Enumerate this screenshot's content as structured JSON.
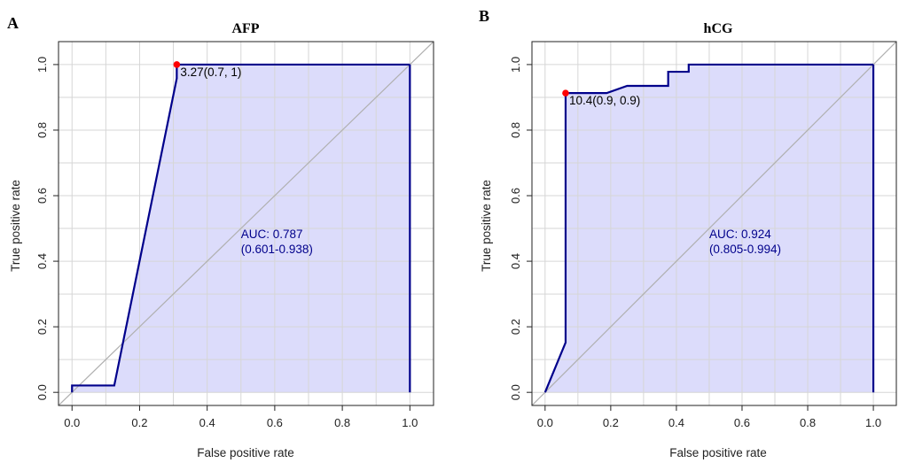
{
  "colors": {
    "fill": "#dcdcfb",
    "curve": "#00008b",
    "grid": "#d6d6d6",
    "diagonal": "#b0b0b0",
    "point": "#ff0000",
    "auc_text": "#00008b",
    "thr_text": "#000000"
  },
  "chart_data": [
    {
      "type": "line",
      "letter": "A",
      "title": "AFP",
      "xlabel": "False positive rate",
      "ylabel": "True positive rate",
      "xlim": [
        -0.04,
        1.07
      ],
      "ylim": [
        -0.04,
        1.07
      ],
      "grid": true,
      "xticks": [
        "0.0",
        "0.2",
        "0.4",
        "0.6",
        "0.8",
        "1.0"
      ],
      "yticks": [
        "0.0",
        "0.2",
        "0.4",
        "0.6",
        "0.8",
        "1.0"
      ],
      "series": [
        {
          "x": [
            0,
            0,
            0.125,
            0.31,
            0.31,
            1.0,
            1.0
          ],
          "y": [
            0,
            0.021,
            0.021,
            0.958,
            1.0,
            1.0,
            0
          ]
        }
      ],
      "threshold": {
        "x": 0.31,
        "y": 1.0,
        "label": "3.27(0.7, 1)"
      },
      "auc_text": "AUC: 0.787",
      "ci_text": "(0.601-0.938)",
      "auc_pos": [
        0.5,
        0.47
      ]
    },
    {
      "type": "line",
      "letter": "B",
      "title": "hCG",
      "xlabel": "False positive rate",
      "ylabel": "True positive rate",
      "xlim": [
        -0.04,
        1.07
      ],
      "ylim": [
        -0.04,
        1.07
      ],
      "grid": true,
      "xticks": [
        "0.0",
        "0.2",
        "0.4",
        "0.6",
        "0.8",
        "1.0"
      ],
      "yticks": [
        "0.0",
        "0.2",
        "0.4",
        "0.6",
        "0.8",
        "1.0"
      ],
      "series": [
        {
          "x": [
            0,
            0.0625,
            0.0625,
            0.1875,
            0.25,
            0.375,
            0.375,
            0.4375,
            0.4375,
            1.0,
            1.0
          ],
          "y": [
            0,
            0.152,
            0.913,
            0.913,
            0.935,
            0.935,
            0.978,
            0.978,
            1.0,
            1.0,
            0
          ]
        }
      ],
      "threshold": {
        "x": 0.0625,
        "y": 0.913,
        "label": "10.4(0.9, 0.9)"
      },
      "auc_text": "AUC: 0.924",
      "ci_text": "(0.805-0.994)",
      "auc_pos": [
        0.5,
        0.47
      ]
    }
  ]
}
